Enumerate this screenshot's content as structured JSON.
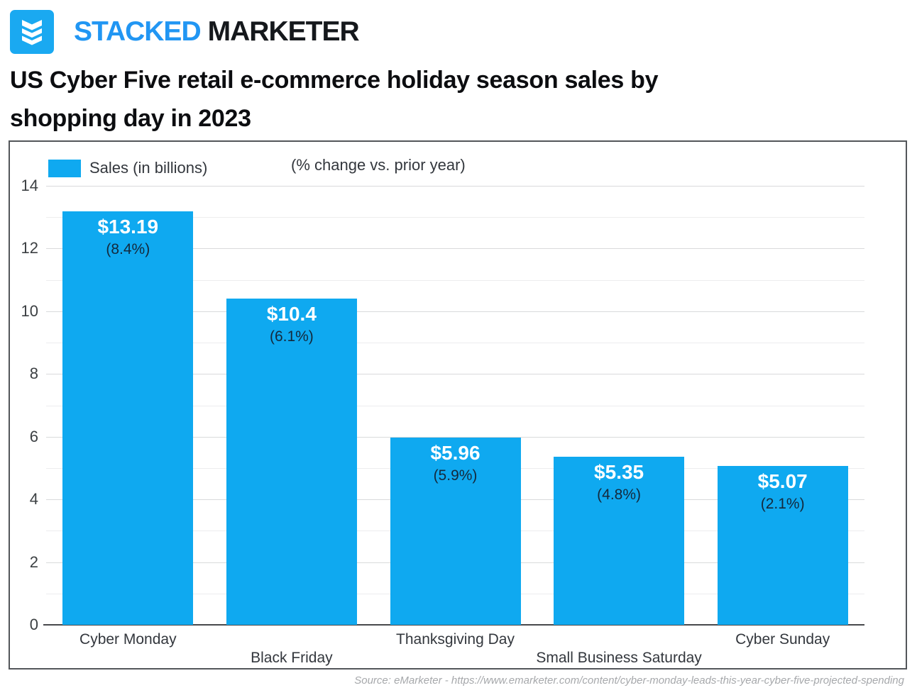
{
  "brand": {
    "name_primary": "STACKED",
    "name_secondary": "MARKETER",
    "logo_icon": "stacked-chevrons-icon",
    "brand_blue": "#2196F3",
    "logo_square_blue": "#1AA9F1"
  },
  "title_lines": [
    "US Cyber Five retail e-commerce holiday season sales by",
    "shopping day in 2023"
  ],
  "chart_data": {
    "type": "bar",
    "title": "US Cyber Five retail e-commerce holiday season sales by shopping day in 2023",
    "categories": [
      "Cyber Monday",
      "Black Friday",
      "Thanksgiving Day",
      "Small Business Saturday",
      "Cyber Sunday"
    ],
    "series": [
      {
        "name": "Sales (in billions)",
        "values": [
          13.19,
          10.4,
          5.96,
          5.35,
          5.07
        ]
      },
      {
        "name": "% change vs. prior year",
        "values": [
          8.4,
          6.1,
          5.9,
          4.8,
          2.1
        ]
      }
    ],
    "bar_labels": [
      "$13.19",
      "$10.4",
      "$5.96",
      "$5.35",
      "$5.07"
    ],
    "pct_labels": [
      "(8.4%)",
      "(6.1%)",
      "(5.9%)",
      "(4.8%)",
      "(2.1%)"
    ],
    "legend": {
      "sales_label": "Sales (in billions)",
      "pct_note": "(% change vs. prior year)",
      "position": "top-left"
    },
    "xlabel": "",
    "ylabel": "",
    "ylim": [
      0,
      14
    ],
    "y_ticks": [
      0,
      2,
      4,
      6,
      8,
      10,
      12,
      14
    ],
    "grid": "horizontal; minor lines every 1, major lines every 2",
    "bar_color": "#0FA9F0",
    "value_label_color": "#FFFFFF",
    "pct_label_color": "#14293C"
  },
  "source": "Source: eMarketer - https://www.emarketer.com/content/cyber-monday-leads-this-year-cyber-five-projected-spending"
}
